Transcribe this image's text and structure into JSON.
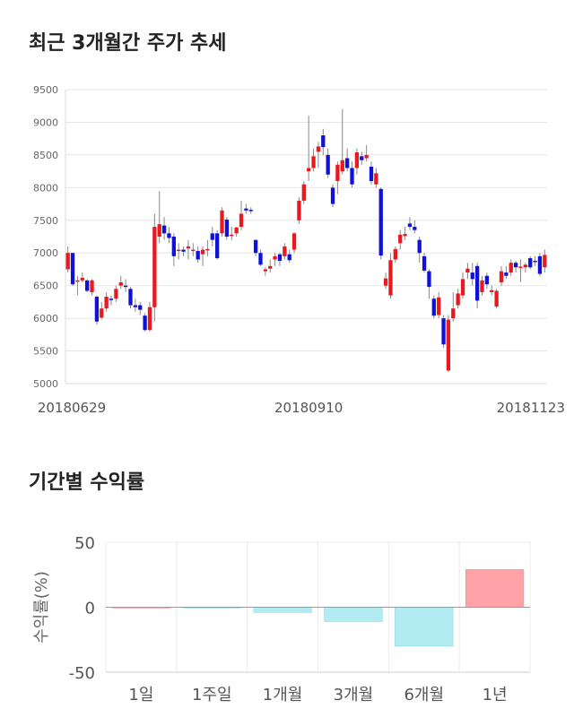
{
  "sections": {
    "price_title": "최근 3개월간 주가 추세",
    "return_title": "기간별 수익률"
  },
  "colors": {
    "up": "#e8191f",
    "down": "#1010d8",
    "positive_bar": "#ffa3a8",
    "negative_bar": "#b2ebf2",
    "grid": "#e6e6e6"
  },
  "chart_data": [
    {
      "type": "candlestick",
      "title": "최근 3개월간 주가 추세",
      "ylim": [
        5000,
        9500
      ],
      "y_ticks": [
        5000,
        5500,
        6000,
        6500,
        7000,
        7500,
        8000,
        8500,
        9000,
        9500
      ],
      "x_tick_labels": [
        "20180629",
        "20180910",
        "20181123"
      ],
      "x_tick_index": [
        0,
        50,
        99
      ],
      "grid": true,
      "candles": [
        {
          "o": 6750,
          "c": 7000,
          "h": 7100,
          "l": 6700
        },
        {
          "o": 7000,
          "c": 6520,
          "h": 7000,
          "l": 6500
        },
        {
          "o": 6560,
          "c": 6580,
          "h": 6650,
          "l": 6350
        },
        {
          "o": 6580,
          "c": 6620,
          "h": 6700,
          "l": 6550
        },
        {
          "o": 6580,
          "c": 6420,
          "h": 6600,
          "l": 6400
        },
        {
          "o": 6400,
          "c": 6580,
          "h": 6600,
          "l": 6350
        },
        {
          "o": 6330,
          "c": 5950,
          "h": 6350,
          "l": 5900
        },
        {
          "o": 6010,
          "c": 6150,
          "h": 6250,
          "l": 5980
        },
        {
          "o": 6150,
          "c": 6330,
          "h": 6400,
          "l": 6100
        },
        {
          "o": 6300,
          "c": 6290,
          "h": 6350,
          "l": 6200
        },
        {
          "o": 6300,
          "c": 6450,
          "h": 6500,
          "l": 6250
        },
        {
          "o": 6500,
          "c": 6550,
          "h": 6650,
          "l": 6450
        },
        {
          "o": 6500,
          "c": 6480,
          "h": 6600,
          "l": 6400
        },
        {
          "o": 6450,
          "c": 6200,
          "h": 6480,
          "l": 6150
        },
        {
          "o": 6200,
          "c": 6170,
          "h": 6300,
          "l": 6100
        },
        {
          "o": 6200,
          "c": 6130,
          "h": 6250,
          "l": 6050
        },
        {
          "o": 6040,
          "c": 5820,
          "h": 6080,
          "l": 5800
        },
        {
          "o": 5820,
          "c": 6170,
          "h": 6250,
          "l": 5800
        },
        {
          "o": 6170,
          "c": 7400,
          "h": 7600,
          "l": 5950
        },
        {
          "o": 7250,
          "c": 7440,
          "h": 7950,
          "l": 7150
        },
        {
          "o": 7420,
          "c": 7300,
          "h": 7550,
          "l": 7200
        },
        {
          "o": 7300,
          "c": 7230,
          "h": 7400,
          "l": 7150
        },
        {
          "o": 7250,
          "c": 6950,
          "h": 7300,
          "l": 6800
        },
        {
          "o": 7040,
          "c": 7050,
          "h": 7150,
          "l": 6900
        },
        {
          "o": 7050,
          "c": 7020,
          "h": 7100,
          "l": 6950
        },
        {
          "o": 7070,
          "c": 7100,
          "h": 7200,
          "l": 6900
        },
        {
          "o": 7050,
          "c": 7050,
          "h": 7150,
          "l": 6950
        },
        {
          "o": 7030,
          "c": 6900,
          "h": 7100,
          "l": 6850
        },
        {
          "o": 6980,
          "c": 7050,
          "h": 7100,
          "l": 6800
        },
        {
          "o": 7050,
          "c": 7060,
          "h": 7200,
          "l": 6950
        },
        {
          "o": 7300,
          "c": 7200,
          "h": 7400,
          "l": 7100
        },
        {
          "o": 7300,
          "c": 6920,
          "h": 7350,
          "l": 6900
        },
        {
          "o": 7300,
          "c": 7650,
          "h": 7700,
          "l": 7250
        },
        {
          "o": 7510,
          "c": 7250,
          "h": 7550,
          "l": 7200
        },
        {
          "o": 7260,
          "c": 7280,
          "h": 7400,
          "l": 7200
        },
        {
          "o": 7300,
          "c": 7390,
          "h": 7400,
          "l": 7250
        },
        {
          "o": 7400,
          "c": 7600,
          "h": 7800,
          "l": 7350
        },
        {
          "o": 7680,
          "c": 7650,
          "h": 7750,
          "l": 7600
        },
        {
          "o": 7660,
          "c": 7650,
          "h": 7700,
          "l": 7600
        },
        {
          "o": 7200,
          "c": 7000,
          "h": 7200,
          "l": 6950
        },
        {
          "o": 7000,
          "c": 6820,
          "h": 7050,
          "l": 6800
        },
        {
          "o": 6720,
          "c": 6750,
          "h": 6780,
          "l": 6650
        },
        {
          "o": 6760,
          "c": 6800,
          "h": 6900,
          "l": 6700
        },
        {
          "o": 6900,
          "c": 6950,
          "h": 7000,
          "l": 6800
        },
        {
          "o": 6980,
          "c": 6880,
          "h": 7000,
          "l": 6800
        },
        {
          "o": 6950,
          "c": 7100,
          "h": 7150,
          "l": 6900
        },
        {
          "o": 6980,
          "c": 6890,
          "h": 7050,
          "l": 6850
        },
        {
          "o": 7050,
          "c": 7300,
          "h": 7320,
          "l": 7000
        },
        {
          "o": 7500,
          "c": 7800,
          "h": 7850,
          "l": 7450
        },
        {
          "o": 7800,
          "c": 8050,
          "h": 8100,
          "l": 7750
        },
        {
          "o": 8250,
          "c": 8300,
          "h": 9100,
          "l": 8100
        },
        {
          "o": 8300,
          "c": 8480,
          "h": 8600,
          "l": 8250
        },
        {
          "o": 8550,
          "c": 8630,
          "h": 8700,
          "l": 8300
        },
        {
          "o": 8800,
          "c": 8620,
          "h": 8900,
          "l": 8500
        },
        {
          "o": 8500,
          "c": 8200,
          "h": 8600,
          "l": 8150
        },
        {
          "o": 8000,
          "c": 7750,
          "h": 8050,
          "l": 7700
        },
        {
          "o": 8100,
          "c": 8350,
          "h": 8400,
          "l": 7900
        },
        {
          "o": 8250,
          "c": 8420,
          "h": 9200,
          "l": 8200
        },
        {
          "o": 8450,
          "c": 8300,
          "h": 8600,
          "l": 8250
        },
        {
          "o": 8300,
          "c": 8050,
          "h": 8400,
          "l": 8000
        },
        {
          "o": 8300,
          "c": 8540,
          "h": 8600,
          "l": 8200
        },
        {
          "o": 8480,
          "c": 8420,
          "h": 8550,
          "l": 8350
        },
        {
          "o": 8450,
          "c": 8500,
          "h": 8650,
          "l": 8400
        },
        {
          "o": 8320,
          "c": 8100,
          "h": 8400,
          "l": 8050
        },
        {
          "o": 8050,
          "c": 8220,
          "h": 8300,
          "l": 8000
        },
        {
          "o": 7980,
          "c": 6960,
          "h": 8000,
          "l": 6900
        },
        {
          "o": 6500,
          "c": 6610,
          "h": 6700,
          "l": 6450
        },
        {
          "o": 6350,
          "c": 6890,
          "h": 7000,
          "l": 6300
        },
        {
          "o": 6900,
          "c": 7060,
          "h": 7100,
          "l": 6850
        },
        {
          "o": 7150,
          "c": 7280,
          "h": 7350,
          "l": 7050
        },
        {
          "o": 7260,
          "c": 7290,
          "h": 7400,
          "l": 7200
        },
        {
          "o": 7450,
          "c": 7400,
          "h": 7550,
          "l": 7350
        },
        {
          "o": 7400,
          "c": 7350,
          "h": 7500,
          "l": 7300
        },
        {
          "o": 7200,
          "c": 7000,
          "h": 7250,
          "l": 6850
        },
        {
          "o": 6950,
          "c": 6730,
          "h": 7000,
          "l": 6700
        },
        {
          "o": 6720,
          "c": 6480,
          "h": 6750,
          "l": 6300
        },
        {
          "o": 6300,
          "c": 6040,
          "h": 6350,
          "l": 6000
        },
        {
          "o": 6050,
          "c": 6320,
          "h": 6400,
          "l": 6000
        },
        {
          "o": 6000,
          "c": 5600,
          "h": 6050,
          "l": 5550
        },
        {
          "o": 5200,
          "c": 5980,
          "h": 6050,
          "l": 5180
        },
        {
          "o": 6000,
          "c": 6150,
          "h": 6400,
          "l": 5950
        },
        {
          "o": 6200,
          "c": 6380,
          "h": 6450,
          "l": 6150
        },
        {
          "o": 6350,
          "c": 6600,
          "h": 6700,
          "l": 6300
        },
        {
          "o": 6700,
          "c": 6760,
          "h": 6850,
          "l": 6600
        },
        {
          "o": 6700,
          "c": 6600,
          "h": 6850,
          "l": 6500
        },
        {
          "o": 6800,
          "c": 6270,
          "h": 6850,
          "l": 6150
        },
        {
          "o": 6400,
          "c": 6580,
          "h": 6650,
          "l": 6350
        },
        {
          "o": 6650,
          "c": 6520,
          "h": 6700,
          "l": 6450
        },
        {
          "o": 6400,
          "c": 6430,
          "h": 6500,
          "l": 6350
        },
        {
          "o": 6180,
          "c": 6420,
          "h": 6450,
          "l": 6150
        },
        {
          "o": 6550,
          "c": 6720,
          "h": 6800,
          "l": 6500
        },
        {
          "o": 6700,
          "c": 6650,
          "h": 6800,
          "l": 6600
        },
        {
          "o": 6700,
          "c": 6850,
          "h": 6900,
          "l": 6650
        },
        {
          "o": 6850,
          "c": 6780,
          "h": 6880,
          "l": 6700
        },
        {
          "o": 6780,
          "c": 6790,
          "h": 6900,
          "l": 6550
        },
        {
          "o": 6780,
          "c": 6820,
          "h": 6850,
          "l": 6700
        },
        {
          "o": 6920,
          "c": 6780,
          "h": 6950,
          "l": 6750
        },
        {
          "o": 6880,
          "c": 6870,
          "h": 6950,
          "l": 6800
        },
        {
          "o": 6950,
          "c": 6680,
          "h": 7000,
          "l": 6650
        },
        {
          "o": 6780,
          "c": 6970,
          "h": 7050,
          "l": 6700
        }
      ]
    },
    {
      "type": "bar",
      "title": "기간별 수익률",
      "ylabel": "수익률(%)",
      "ylim": [
        -50,
        50
      ],
      "y_ticks": [
        -50,
        0,
        50
      ],
      "categories": [
        "1일",
        "1주일",
        "1개월",
        "3개월",
        "6개월",
        "1년"
      ],
      "values": [
        0,
        -0.5,
        -4,
        -11,
        -30,
        29
      ],
      "grid": true
    }
  ]
}
